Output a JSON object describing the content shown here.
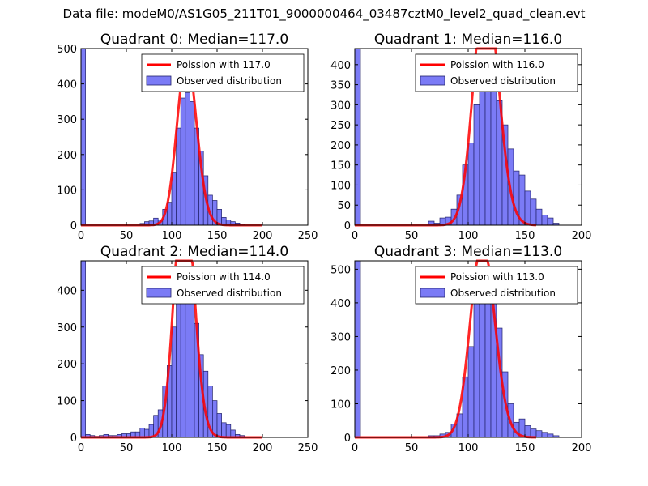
{
  "figure": {
    "suptitle": "Data file: modeM0/AS1G05_211T01_9000000464_03487cztM0_level2_quad_clean.evt"
  },
  "colors": {
    "bar_fill": "#7b7bf6",
    "bar_edge": "#22226a",
    "fit_line": "#ff0000",
    "axes": "#000000"
  },
  "chart_data": [
    {
      "type": "bar",
      "title": "Quadrant 0: Median=117.0",
      "median": 117.0,
      "xlim": [
        0,
        250
      ],
      "ylim": [
        0,
        500
      ],
      "xticks": [
        0,
        50,
        100,
        150,
        200,
        250
      ],
      "yticks": [
        0,
        100,
        200,
        300,
        400,
        500
      ],
      "bin_width": 5,
      "first_bin": {
        "x": 0,
        "value": 500
      },
      "bins": [
        [
          65,
          5
        ],
        [
          70,
          10
        ],
        [
          75,
          12
        ],
        [
          80,
          20
        ],
        [
          85,
          15
        ],
        [
          90,
          45
        ],
        [
          95,
          65
        ],
        [
          100,
          150
        ],
        [
          105,
          275
        ],
        [
          110,
          360
        ],
        [
          115,
          375
        ],
        [
          120,
          350
        ],
        [
          125,
          275
        ],
        [
          130,
          210
        ],
        [
          135,
          140
        ],
        [
          140,
          85
        ],
        [
          145,
          70
        ],
        [
          150,
          45
        ],
        [
          155,
          22
        ],
        [
          160,
          15
        ],
        [
          165,
          10
        ],
        [
          170,
          6
        ],
        [
          175,
          3
        ]
      ],
      "legend": {
        "position": "upper right",
        "fit_label": "Poission with 117.0",
        "bar_label": "Observed distribution"
      }
    },
    {
      "type": "bar",
      "title": "Quadrant 1: Median=116.0",
      "median": 116.0,
      "xlim": [
        0,
        200
      ],
      "ylim": [
        0,
        440
      ],
      "xticks": [
        0,
        50,
        100,
        150,
        200
      ],
      "yticks": [
        0,
        50,
        100,
        150,
        200,
        250,
        300,
        350,
        400
      ],
      "bin_width": 5,
      "first_bin": {
        "x": 0,
        "value": 440
      },
      "bins": [
        [
          65,
          10
        ],
        [
          70,
          5
        ],
        [
          75,
          18
        ],
        [
          80,
          20
        ],
        [
          85,
          40
        ],
        [
          90,
          75
        ],
        [
          95,
          150
        ],
        [
          100,
          205
        ],
        [
          105,
          300
        ],
        [
          110,
          400
        ],
        [
          115,
          415
        ],
        [
          120,
          375
        ],
        [
          125,
          310
        ],
        [
          130,
          250
        ],
        [
          135,
          190
        ],
        [
          140,
          135
        ],
        [
          145,
          125
        ],
        [
          150,
          85
        ],
        [
          155,
          65
        ],
        [
          160,
          40
        ],
        [
          165,
          25
        ],
        [
          170,
          18
        ],
        [
          175,
          5
        ]
      ],
      "legend": {
        "position": "upper right",
        "fit_label": "Poission with 116.0",
        "bar_label": "Observed distribution"
      }
    },
    {
      "type": "bar",
      "title": "Quadrant 2: Median=114.0",
      "median": 114.0,
      "xlim": [
        0,
        250
      ],
      "ylim": [
        0,
        480
      ],
      "xticks": [
        0,
        50,
        100,
        150,
        200,
        250
      ],
      "yticks": [
        0,
        100,
        200,
        300,
        400
      ],
      "bin_width": 5,
      "first_bin": {
        "x": 0,
        "value": 480
      },
      "bins": [
        [
          5,
          8
        ],
        [
          10,
          5
        ],
        [
          15,
          3
        ],
        [
          20,
          5
        ],
        [
          25,
          8
        ],
        [
          30,
          5
        ],
        [
          35,
          5
        ],
        [
          40,
          8
        ],
        [
          45,
          10
        ],
        [
          50,
          10
        ],
        [
          55,
          15
        ],
        [
          60,
          15
        ],
        [
          65,
          25
        ],
        [
          70,
          22
        ],
        [
          75,
          35
        ],
        [
          80,
          60
        ],
        [
          85,
          75
        ],
        [
          90,
          140
        ],
        [
          95,
          195
        ],
        [
          100,
          300
        ],
        [
          105,
          400
        ],
        [
          110,
          415
        ],
        [
          115,
          445
        ],
        [
          120,
          380
        ],
        [
          125,
          310
        ],
        [
          130,
          225
        ],
        [
          135,
          180
        ],
        [
          140,
          140
        ],
        [
          145,
          100
        ],
        [
          150,
          65
        ],
        [
          155,
          40
        ],
        [
          160,
          35
        ],
        [
          165,
          20
        ],
        [
          170,
          8
        ],
        [
          175,
          5
        ]
      ],
      "legend": {
        "position": "upper right",
        "fit_label": "Poission with 114.0",
        "bar_label": "Observed distribution"
      }
    },
    {
      "type": "bar",
      "title": "Quadrant 3: Median=113.0",
      "median": 113.0,
      "xlim": [
        0,
        200
      ],
      "ylim": [
        0,
        525
      ],
      "xticks": [
        0,
        50,
        100,
        150,
        200
      ],
      "yticks": [
        0,
        100,
        200,
        300,
        400,
        500
      ],
      "bin_width": 5,
      "first_bin": {
        "x": 0,
        "value": 525
      },
      "bins": [
        [
          65,
          5
        ],
        [
          70,
          5
        ],
        [
          75,
          10
        ],
        [
          80,
          15
        ],
        [
          85,
          40
        ],
        [
          90,
          70
        ],
        [
          95,
          180
        ],
        [
          100,
          270
        ],
        [
          105,
          400
        ],
        [
          110,
          450
        ],
        [
          115,
          440
        ],
        [
          120,
          400
        ],
        [
          125,
          325
        ],
        [
          130,
          195
        ],
        [
          135,
          100
        ],
        [
          140,
          45
        ],
        [
          145,
          55
        ],
        [
          150,
          35
        ],
        [
          155,
          25
        ],
        [
          160,
          20
        ],
        [
          165,
          15
        ],
        [
          170,
          10
        ],
        [
          175,
          5
        ]
      ],
      "legend": {
        "position": "upper right",
        "fit_label": "Poission with 113.0",
        "bar_label": "Observed distribution"
      }
    }
  ]
}
